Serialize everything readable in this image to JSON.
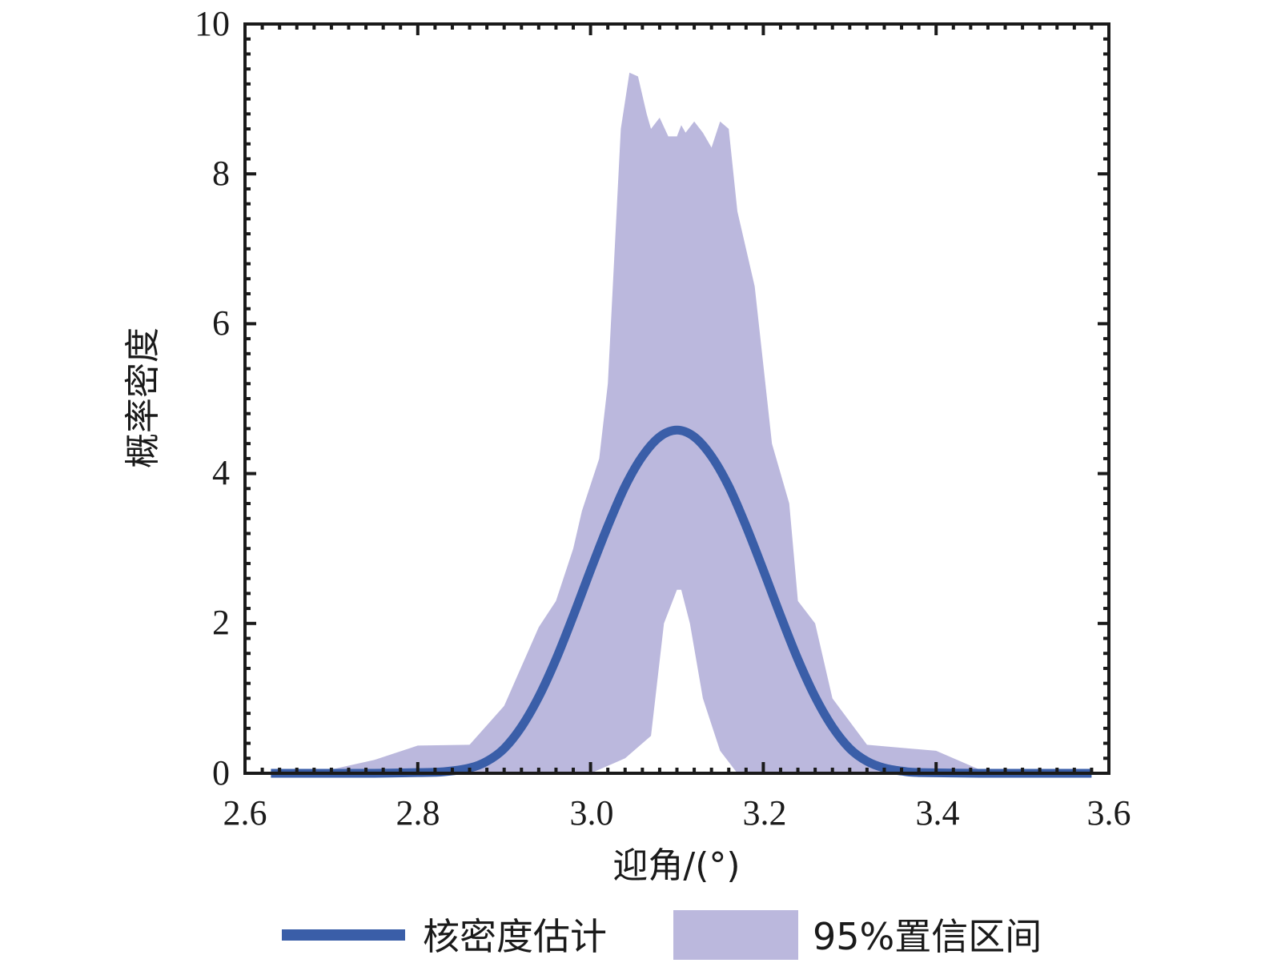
{
  "chart_data": {
    "type": "area",
    "xlabel": "迎角/(°)",
    "ylabel": "概率密度",
    "xlim": [
      2.6,
      3.6
    ],
    "ylim": [
      0,
      10
    ],
    "x_ticks": [
      "2.6",
      "2.8",
      "3.0",
      "3.2",
      "3.4",
      "3.6"
    ],
    "y_ticks": [
      "0",
      "2",
      "4",
      "6",
      "8",
      "10"
    ],
    "grid": false,
    "legend_position": "bottom",
    "series": [
      {
        "name": "核密度估计",
        "kind": "line",
        "color": "#3a5ea8",
        "x": [
          2.63,
          2.7,
          2.75,
          2.8,
          2.83,
          2.86,
          2.88,
          2.9,
          2.92,
          2.94,
          2.96,
          2.98,
          3.0,
          3.02,
          3.04,
          3.06,
          3.08,
          3.1,
          3.12,
          3.14,
          3.16,
          3.18,
          3.2,
          3.22,
          3.24,
          3.26,
          3.28,
          3.3,
          3.32,
          3.34,
          3.36,
          3.38,
          3.45,
          3.5,
          3.58
        ],
        "y": [
          0,
          0,
          0,
          0.01,
          0.02,
          0.07,
          0.16,
          0.33,
          0.62,
          1.02,
          1.52,
          2.1,
          2.71,
          3.3,
          3.83,
          4.23,
          4.49,
          4.58,
          4.49,
          4.23,
          3.83,
          3.3,
          2.71,
          2.1,
          1.52,
          1.02,
          0.62,
          0.33,
          0.16,
          0.07,
          0.03,
          0.01,
          0,
          0,
          0
        ]
      },
      {
        "name": "95%置信区间",
        "kind": "band",
        "color": "#bbb8dd",
        "upper": {
          "x": [
            2.63,
            2.7,
            2.75,
            2.8,
            2.86,
            2.9,
            2.94,
            2.96,
            2.98,
            2.99,
            3.01,
            3.02,
            3.035,
            3.045,
            3.055,
            3.065,
            3.07,
            3.08,
            3.09,
            3.1,
            3.105,
            3.11,
            3.12,
            3.13,
            3.14,
            3.15,
            3.16,
            3.17,
            3.19,
            3.21,
            3.23,
            3.24,
            3.26,
            3.28,
            3.32,
            3.35,
            3.4,
            3.45,
            3.5,
            3.58
          ],
          "y": [
            0,
            0.05,
            0.18,
            0.37,
            0.38,
            0.9,
            1.95,
            2.3,
            3.0,
            3.5,
            4.2,
            5.2,
            8.6,
            9.35,
            9.3,
            8.8,
            8.6,
            8.75,
            8.5,
            8.5,
            8.65,
            8.55,
            8.7,
            8.55,
            8.35,
            8.7,
            8.6,
            7.5,
            6.5,
            4.4,
            3.6,
            2.3,
            2.0,
            1.0,
            0.38,
            0.35,
            0.3,
            0.05,
            0,
            0
          ]
        },
        "lower": {
          "x": [
            2.63,
            3.0,
            3.04,
            3.07,
            3.075,
            3.085,
            3.1,
            3.105,
            3.115,
            3.13,
            3.15,
            3.17,
            3.58
          ],
          "y": [
            0,
            0,
            0.2,
            0.5,
            1.0,
            2.0,
            2.45,
            2.45,
            2.0,
            1.0,
            0.3,
            0,
            0
          ]
        }
      }
    ]
  }
}
